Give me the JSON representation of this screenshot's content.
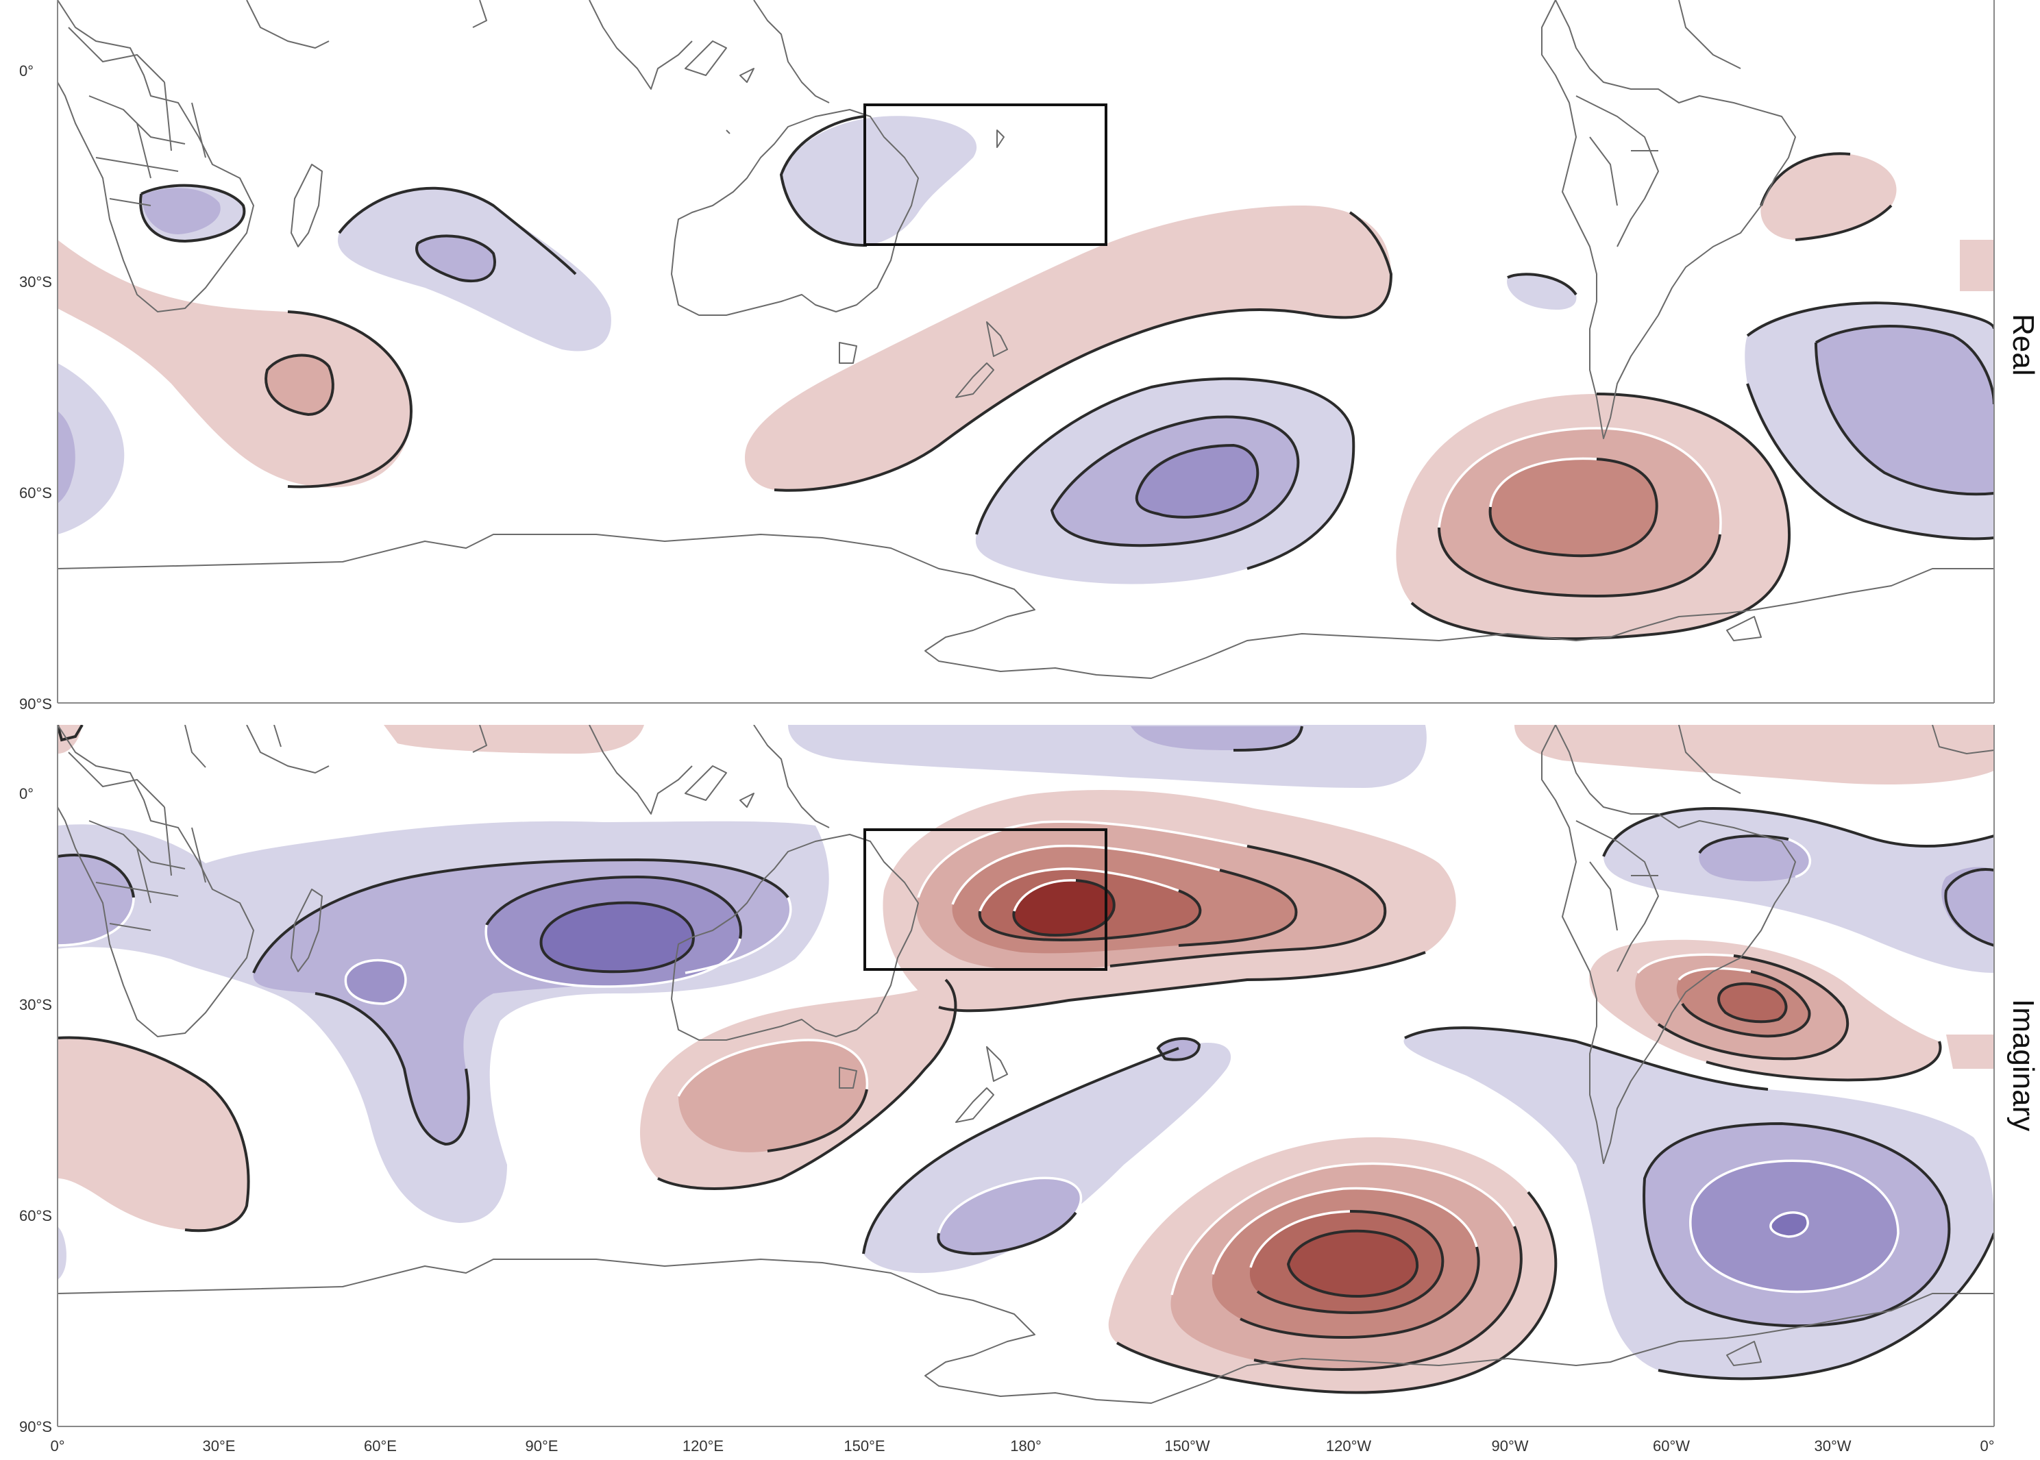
{
  "colors": {
    "positive_1": "#e9cdcb",
    "positive_2": "#d9aba6",
    "positive_3": "#c68880",
    "positive_4": "#b36860",
    "positive_5": "#8f2f2c",
    "negative_1": "#d6d4e8",
    "negative_2": "#b9b2d8",
    "negative_3": "#9c92c8",
    "negative_4": "#7e72b7",
    "contour_line": "#2b2b2b",
    "box_outline": "#111111",
    "coastline": "#6a6a6a"
  },
  "lon_ticks": [
    "0°",
    "30°E",
    "60°E",
    "90°E",
    "120°E",
    "150°E",
    "180°",
    "150°W",
    "120°W",
    "90°W",
    "60°W",
    "30°W",
    "0°"
  ],
  "panels": [
    {
      "label": "Real",
      "lat_ticks": [
        "0°",
        "30°S",
        "60°S",
        "90°S"
      ]
    },
    {
      "label": "Imaginary",
      "lat_ticks": [
        "0°",
        "30°S",
        "60°S",
        "90°S"
      ]
    }
  ],
  "highlight_box": {
    "lon_range": [
      "150°E",
      "195°E"
    ],
    "lat_range": [
      "5°S",
      "25°S"
    ]
  }
}
